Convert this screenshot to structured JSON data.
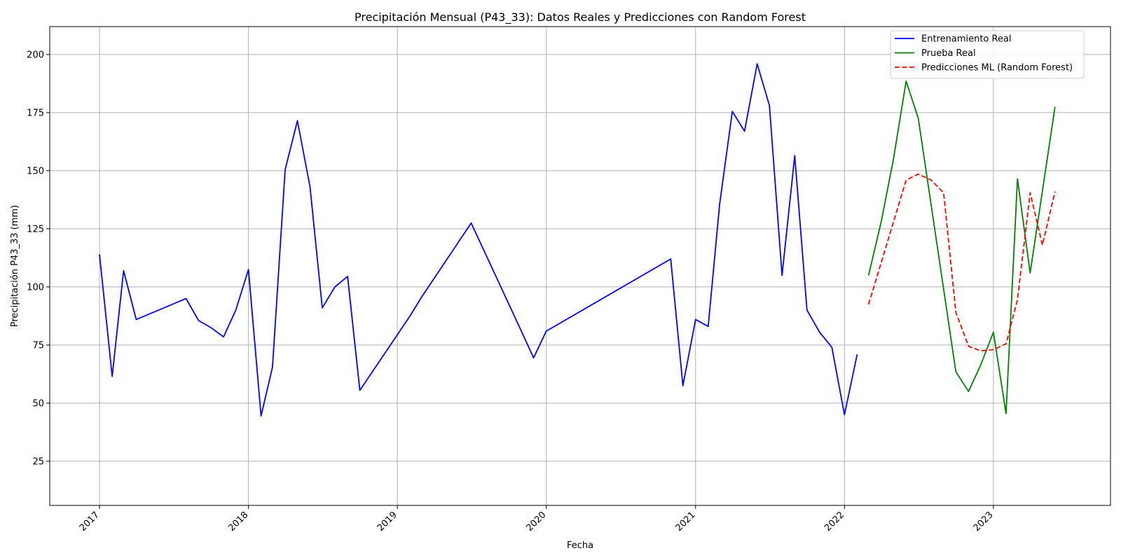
{
  "chart_data": {
    "type": "line",
    "title": "Precipitación Mensual (P43_33): Datos Reales y Predicciones con Random Forest",
    "xlabel": "Fecha",
    "ylabel": "Precipitación P43_33 (mm)",
    "xlim": [
      "2016-09-01",
      "2023-10-15"
    ],
    "ylim": [
      6,
      212
    ],
    "x_ticks": [
      "2017",
      "2018",
      "2019",
      "2020",
      "2021",
      "2022",
      "2023"
    ],
    "x_tick_dates": [
      "2017-01-01",
      "2018-01-01",
      "2019-01-01",
      "2020-01-01",
      "2021-01-01",
      "2022-01-01",
      "2023-01-01"
    ],
    "y_ticks": [
      25,
      50,
      75,
      100,
      125,
      150,
      175,
      200
    ],
    "grid": true,
    "legend": "top-right",
    "colors": {
      "train": "#0000ff",
      "test": "#008000",
      "pred": "#ff0000"
    },
    "series": [
      {
        "name": "Entrenamiento Real",
        "style": "solid",
        "points": [
          [
            "2017-01-01",
            114
          ],
          [
            "2017-02-01",
            61.5
          ],
          [
            "2017-03-01",
            107
          ],
          [
            "2017-04-01",
            86
          ],
          [
            "2017-08-01",
            95
          ],
          [
            "2017-09-01",
            85.5
          ],
          [
            "2017-10-01",
            82.5
          ],
          [
            "2017-11-01",
            78.5
          ],
          [
            "2017-12-01",
            90
          ],
          [
            "2018-01-01",
            107.5
          ],
          [
            "2018-02-01",
            44.5
          ],
          [
            "2018-03-01",
            65.5
          ],
          [
            "2018-04-01",
            150.5
          ],
          [
            "2018-05-01",
            171.5
          ],
          [
            "2018-06-01",
            143
          ],
          [
            "2018-07-01",
            91
          ],
          [
            "2018-08-01",
            100
          ],
          [
            "2018-09-01",
            104.5
          ],
          [
            "2018-10-01",
            55.5
          ],
          [
            "2019-02-01",
            87.5
          ],
          [
            "2019-03-01",
            95.5
          ],
          [
            "2019-07-01",
            127.5
          ],
          [
            "2019-11-01",
            81
          ],
          [
            "2019-12-01",
            69.5
          ],
          [
            "2020-01-01",
            81
          ],
          [
            "2020-11-01",
            112
          ],
          [
            "2020-12-01",
            57.5
          ],
          [
            "2021-01-01",
            86
          ],
          [
            "2021-02-01",
            83
          ],
          [
            "2021-03-01",
            135.5
          ],
          [
            "2021-04-01",
            175.5
          ],
          [
            "2021-05-01",
            167
          ],
          [
            "2021-06-01",
            196
          ],
          [
            "2021-07-01",
            178
          ],
          [
            "2021-08-01",
            105
          ],
          [
            "2021-09-01",
            156.5
          ],
          [
            "2021-10-01",
            90
          ],
          [
            "2021-11-01",
            80.5
          ],
          [
            "2021-12-01",
            74
          ],
          [
            "2022-01-01",
            45
          ],
          [
            "2022-02-01",
            71
          ]
        ]
      },
      {
        "name": "Prueba Real",
        "style": "solid",
        "points": [
          [
            "2022-03-01",
            105
          ],
          [
            "2022-04-01",
            128
          ],
          [
            "2022-05-01",
            155
          ],
          [
            "2022-06-01",
            188.5
          ],
          [
            "2022-07-01",
            172.5
          ],
          [
            "2022-10-01",
            63.5
          ],
          [
            "2022-11-01",
            55
          ],
          [
            "2022-12-01",
            66.5
          ],
          [
            "2023-01-01",
            80.5
          ],
          [
            "2023-02-01",
            45.5
          ],
          [
            "2023-03-01",
            146.5
          ],
          [
            "2023-04-01",
            106
          ],
          [
            "2023-06-01",
            177.5
          ]
        ]
      },
      {
        "name": "Predicciones ML (Random Forest)",
        "style": "dashed",
        "points": [
          [
            "2022-03-01",
            92.5
          ],
          [
            "2022-06-01",
            146
          ],
          [
            "2022-07-01",
            148.5
          ],
          [
            "2022-08-01",
            146
          ],
          [
            "2022-09-01",
            140.5
          ],
          [
            "2022-10-01",
            89
          ],
          [
            "2022-11-01",
            74.5
          ],
          [
            "2022-12-01",
            72.5
          ],
          [
            "2023-01-01",
            73
          ],
          [
            "2023-02-01",
            75.5
          ],
          [
            "2023-03-01",
            94.5
          ],
          [
            "2023-04-01",
            140.5
          ],
          [
            "2023-05-01",
            118
          ],
          [
            "2023-06-01",
            141
          ]
        ]
      }
    ]
  }
}
